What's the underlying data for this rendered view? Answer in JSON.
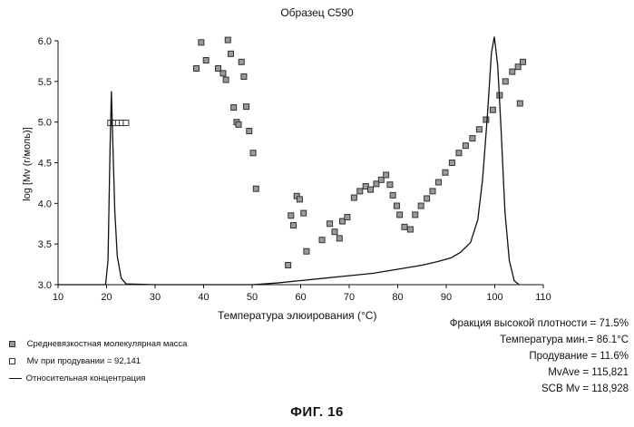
{
  "chart_data": {
    "type": "scatter",
    "title": "Образец C590",
    "xlabel": "Температура элюирования (°C)",
    "ylabel": "log [Mv (г/моль)]",
    "xlim": [
      10,
      110
    ],
    "ylim": [
      3.0,
      6.0
    ],
    "xticks": [
      10,
      20,
      30,
      40,
      50,
      60,
      70,
      80,
      90,
      100,
      110
    ],
    "yticks": [
      3.0,
      3.5,
      4.0,
      4.5,
      5.0,
      5.5,
      6.0
    ],
    "grid": false,
    "legend_position": "bottom-left",
    "series": [
      {
        "name": "Средневязкостная молекулярная масса",
        "kind": "scatter",
        "points": [
          [
            38.5,
            5.66
          ],
          [
            39.5,
            5.98
          ],
          [
            40.5,
            5.76
          ],
          [
            43.0,
            5.66
          ],
          [
            44.0,
            5.6
          ],
          [
            44.6,
            5.52
          ],
          [
            45.0,
            6.01
          ],
          [
            45.6,
            5.84
          ],
          [
            46.2,
            5.18
          ],
          [
            46.8,
            5.0
          ],
          [
            47.2,
            4.97
          ],
          [
            47.8,
            5.74
          ],
          [
            48.3,
            5.56
          ],
          [
            48.8,
            5.19
          ],
          [
            49.4,
            4.89
          ],
          [
            50.2,
            4.62
          ],
          [
            50.8,
            4.18
          ],
          [
            57.4,
            3.24
          ],
          [
            58.0,
            3.85
          ],
          [
            58.5,
            3.73
          ],
          [
            59.2,
            4.09
          ],
          [
            59.8,
            4.05
          ],
          [
            60.6,
            3.88
          ],
          [
            61.2,
            3.41
          ],
          [
            64.4,
            3.55
          ],
          [
            66.0,
            3.75
          ],
          [
            67.0,
            3.65
          ],
          [
            68.0,
            3.57
          ],
          [
            68.6,
            3.78
          ],
          [
            69.6,
            3.83
          ],
          [
            71.0,
            4.07
          ],
          [
            72.2,
            4.15
          ],
          [
            73.4,
            4.21
          ],
          [
            74.4,
            4.17
          ],
          [
            75.6,
            4.24
          ],
          [
            76.6,
            4.29
          ],
          [
            77.6,
            4.35
          ],
          [
            78.4,
            4.23
          ],
          [
            79.0,
            4.1
          ],
          [
            79.8,
            3.97
          ],
          [
            80.4,
            3.86
          ],
          [
            81.4,
            3.71
          ],
          [
            82.6,
            3.68
          ],
          [
            83.6,
            3.86
          ],
          [
            84.8,
            3.97
          ],
          [
            86.0,
            4.06
          ],
          [
            87.2,
            4.15
          ],
          [
            88.4,
            4.26
          ],
          [
            89.8,
            4.38
          ],
          [
            91.2,
            4.5
          ],
          [
            92.6,
            4.62
          ],
          [
            94.0,
            4.71
          ],
          [
            95.4,
            4.8
          ],
          [
            96.8,
            4.91
          ],
          [
            98.2,
            5.03
          ],
          [
            99.6,
            5.15
          ],
          [
            101.0,
            5.33
          ],
          [
            102.2,
            5.5
          ],
          [
            103.6,
            5.62
          ],
          [
            104.8,
            5.68
          ],
          [
            105.2,
            5.23
          ],
          [
            105.8,
            5.74
          ]
        ]
      },
      {
        "name": "Mv при продувании = 92,141",
        "kind": "scatter-open",
        "points": [
          [
            20.8,
            4.99
          ],
          [
            21.6,
            4.99
          ],
          [
            22.4,
            4.99
          ],
          [
            23.2,
            4.99
          ],
          [
            24.0,
            4.99
          ]
        ]
      },
      {
        "name": "Относительная концентрация",
        "kind": "line",
        "points": [
          [
            10,
            3.0
          ],
          [
            19.8,
            3.0
          ],
          [
            20.3,
            3.3
          ],
          [
            20.7,
            4.6
          ],
          [
            21.0,
            5.38
          ],
          [
            21.3,
            4.7
          ],
          [
            21.7,
            3.9
          ],
          [
            22.2,
            3.35
          ],
          [
            23.0,
            3.08
          ],
          [
            24.0,
            3.01
          ],
          [
            30,
            3.0
          ],
          [
            50,
            3.0
          ],
          [
            55,
            3.02
          ],
          [
            60,
            3.05
          ],
          [
            65,
            3.08
          ],
          [
            70,
            3.11
          ],
          [
            75,
            3.14
          ],
          [
            80,
            3.19
          ],
          [
            85,
            3.24
          ],
          [
            88,
            3.28
          ],
          [
            91,
            3.33
          ],
          [
            93,
            3.4
          ],
          [
            95,
            3.52
          ],
          [
            96.5,
            3.8
          ],
          [
            97.5,
            4.3
          ],
          [
            98.5,
            5.1
          ],
          [
            99.3,
            5.85
          ],
          [
            99.9,
            6.05
          ],
          [
            100.6,
            5.7
          ],
          [
            101.3,
            4.9
          ],
          [
            102.1,
            3.9
          ],
          [
            103.0,
            3.3
          ],
          [
            104.0,
            3.05
          ],
          [
            105.0,
            3.0
          ]
        ]
      }
    ]
  },
  "legend": {
    "items": [
      {
        "label": "Средневязкостная молекулярная масса",
        "marker": "filled"
      },
      {
        "label": "Mv  при продувании  =  92,141",
        "marker": "open"
      },
      {
        "label": "Относительная концентрация",
        "marker": "line"
      }
    ]
  },
  "stats": [
    "Фракция высокой плотности = 71.5%",
    "Температура мин.= 86.1°C",
    "Продувание  = 11.6%",
    "MvAve = 115,821",
    "SCB Mv = 118,928"
  ],
  "figure_caption": "ФИГ. 16"
}
